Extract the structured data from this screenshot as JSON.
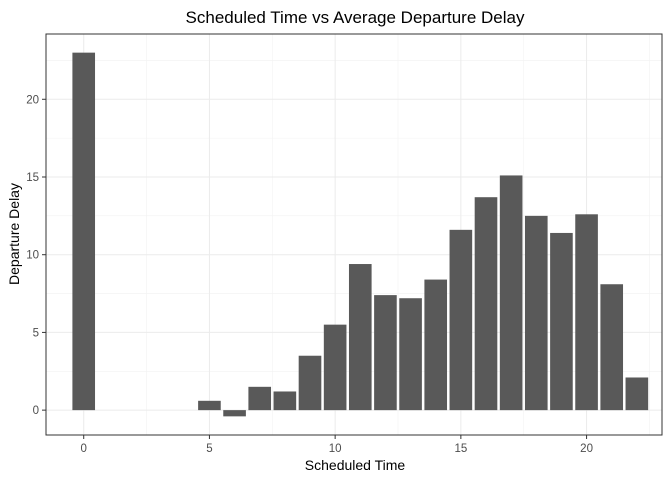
{
  "chart_data": {
    "type": "bar",
    "title": "Scheduled Time vs Average Departure Delay",
    "xlabel": "Scheduled Time",
    "ylabel": "Departure Delay",
    "x": [
      0,
      5,
      6,
      7,
      8,
      9,
      10,
      11,
      12,
      13,
      14,
      15,
      16,
      17,
      18,
      19,
      20,
      21,
      22
    ],
    "values": [
      23.0,
      0.6,
      -0.4,
      1.5,
      1.2,
      3.5,
      5.5,
      9.4,
      7.4,
      7.2,
      8.4,
      11.6,
      13.7,
      15.1,
      12.5,
      11.4,
      12.6,
      8.1,
      2.1
    ],
    "xlim": [
      -1.5,
      23.0
    ],
    "ylim": [
      -1.6,
      24.2
    ],
    "x_ticks": [
      "0",
      "5",
      "10",
      "15",
      "20"
    ],
    "y_ticks": [
      "0",
      "5",
      "10",
      "15",
      "20"
    ],
    "bar_color": "#595959",
    "grid": true,
    "legend": "none"
  }
}
